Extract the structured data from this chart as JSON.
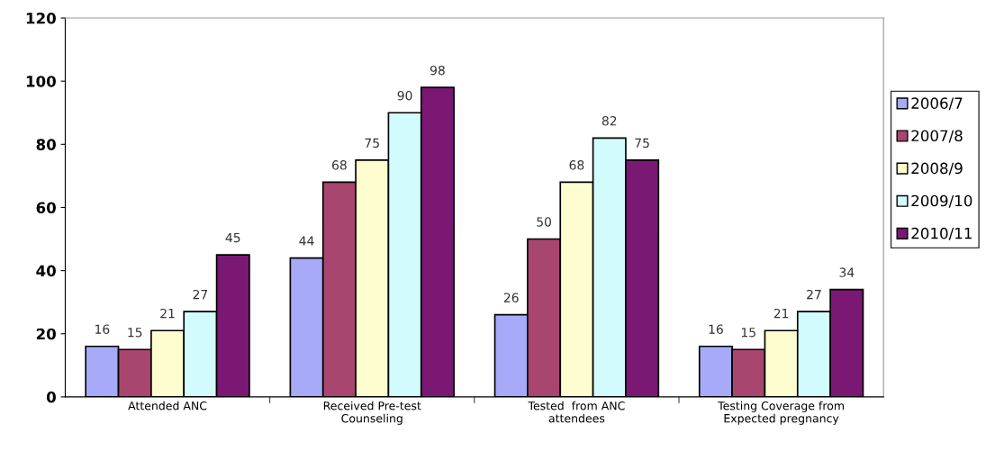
{
  "chart_data": {
    "type": "bar",
    "categories": [
      "Attended ANC",
      "Received Pre-test\nCounseling",
      "Tested  from ANC\nattendees",
      "Testing Coverage from\nExpected pregnancy"
    ],
    "series": [
      {
        "name": "2006/7",
        "color": "#a6aaf8",
        "values": [
          16,
          44,
          26,
          16
        ]
      },
      {
        "name": "2007/8",
        "color": "#a8466f",
        "values": [
          15,
          68,
          50,
          15
        ]
      },
      {
        "name": "2008/9",
        "color": "#fefdd0",
        "values": [
          21,
          75,
          68,
          21
        ]
      },
      {
        "name": "2009/10",
        "color": "#d2fbfd",
        "values": [
          27,
          90,
          82,
          27
        ]
      },
      {
        "name": "2010/11",
        "color": "#7a1874",
        "values": [
          45,
          98,
          75,
          34
        ]
      }
    ],
    "ylim": [
      0,
      120
    ],
    "yticks": [
      0,
      20,
      40,
      60,
      80,
      100,
      120
    ],
    "data_labels": true,
    "legend": "right",
    "grid": false
  }
}
